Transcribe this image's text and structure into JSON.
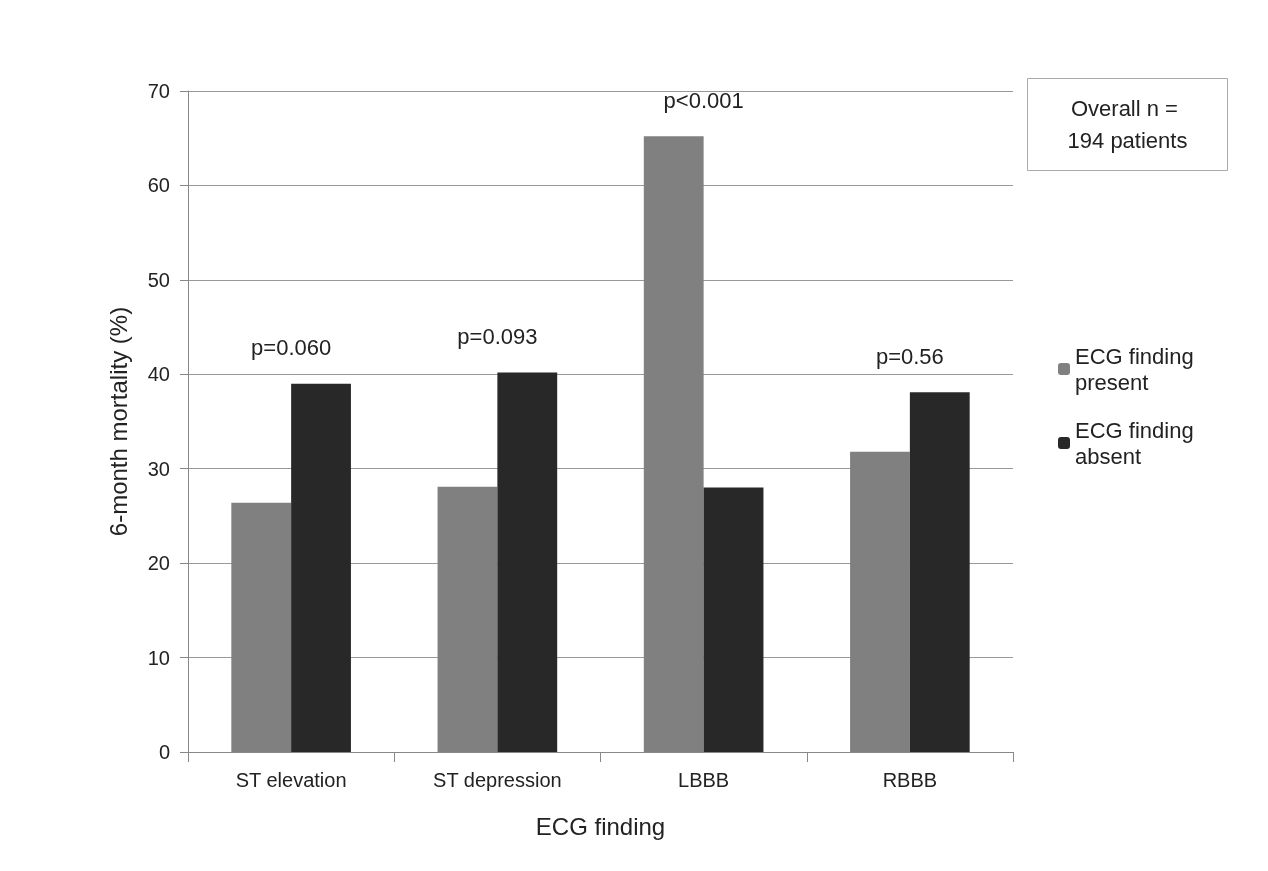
{
  "chart_data": {
    "type": "bar",
    "xlabel": "ECG finding",
    "ylabel": "6-month mortality (%)",
    "categories": [
      "ST elevation",
      "ST depression",
      "LBBB",
      "RBBB"
    ],
    "series": [
      {
        "name": "ECG finding present",
        "color": "#808080",
        "values": [
          26.4,
          28.1,
          65.2,
          31.8
        ]
      },
      {
        "name": "ECG finding absent",
        "color": "#282828",
        "values": [
          39.0,
          40.2,
          28.0,
          38.1
        ]
      }
    ],
    "ylim": [
      0,
      70
    ],
    "yticks": [
      0,
      10,
      20,
      30,
      40,
      50,
      60,
      70
    ],
    "grid": "y",
    "legend": "right",
    "annotations": [
      "p=0.060",
      "p=0.093",
      "p<0.001",
      "p=0.56",
      "Overall n = 194 patients"
    ]
  }
}
